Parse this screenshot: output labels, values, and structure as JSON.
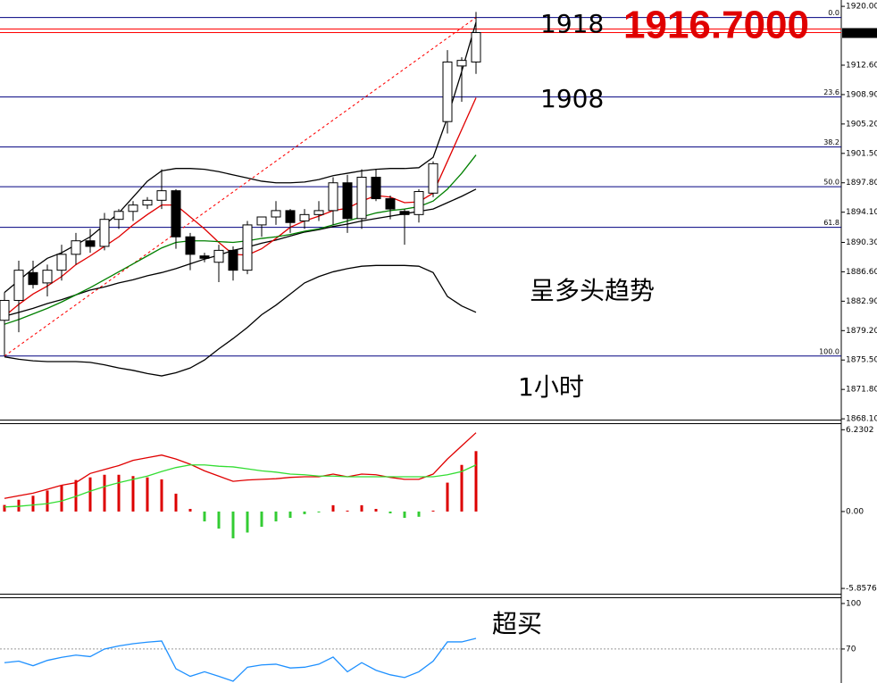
{
  "chart_data": [
    {
      "type": "candlestick",
      "ylim": [
        1868,
        1920.8
      ],
      "yticks": [
        {
          "value": 1920,
          "label": "1920.00"
        },
        {
          "value": 1912.6,
          "label": "1912.60"
        },
        {
          "value": 1908.9,
          "label": "1908.90"
        },
        {
          "value": 1905.2,
          "label": "1905.20"
        },
        {
          "value": 1901.5,
          "label": "1901.50"
        },
        {
          "value": 1897.8,
          "label": "1897.80"
        },
        {
          "value": 1894.1,
          "label": "1894.10"
        },
        {
          "value": 1890.3,
          "label": "1890.30"
        },
        {
          "value": 1886.6,
          "label": "1886.60"
        },
        {
          "value": 1882.9,
          "label": "1882.90"
        },
        {
          "value": 1879.2,
          "label": "1879.20"
        },
        {
          "value": 1875.5,
          "label": "1875.50"
        },
        {
          "value": 1871.8,
          "label": "1871.80"
        },
        {
          "value": 1868.1,
          "label": "1868.10"
        }
      ],
      "current_price": {
        "value": 1916.7,
        "label": "1916.70"
      },
      "current_price_color": "#ff0000",
      "up_color": "#ffffff",
      "down_color": "#000000",
      "open": [
        1880.5,
        1883,
        1886.5,
        1885.2,
        1886.8,
        1888.8,
        1890.5,
        1889.8,
        1893.2,
        1894.2,
        1895,
        1895.6,
        1896.8,
        1891,
        1888.6,
        1887.8,
        1889.3,
        1886.8,
        1892.5,
        1893.5,
        1894.3,
        1893,
        1893.8,
        1894.3,
        1897.8,
        1893.3,
        1898.5,
        1895.8,
        1894.2,
        1893.8,
        1896.5,
        1905.5,
        1912.5,
        1913
      ],
      "high": [
        1884,
        1888,
        1888,
        1887.5,
        1890,
        1891.5,
        1892,
        1894,
        1894.5,
        1895.5,
        1896,
        1899.5,
        1897,
        1891.5,
        1889,
        1890,
        1889.8,
        1893,
        1893.5,
        1895.5,
        1894.5,
        1894.5,
        1895.5,
        1898.5,
        1898.8,
        1899.5,
        1899.5,
        1896.2,
        1894.5,
        1897,
        1900.5,
        1914.5,
        1913.6,
        1919.3
      ],
      "low": [
        1876,
        1879,
        1884.5,
        1883.5,
        1885.5,
        1887.5,
        1889,
        1889.3,
        1892,
        1893,
        1894.5,
        1894.5,
        1889.5,
        1886.8,
        1887.8,
        1885.3,
        1885.5,
        1886.3,
        1891,
        1892.5,
        1891.5,
        1892,
        1893,
        1892.5,
        1891.5,
        1892,
        1895.5,
        1893.2,
        1890,
        1892.8,
        1896,
        1904,
        1908,
        1911.5
      ],
      "close": [
        1883,
        1886.8,
        1885,
        1886.8,
        1888.8,
        1890.5,
        1889.8,
        1893.2,
        1894.2,
        1895,
        1895.6,
        1896.8,
        1891,
        1888.8,
        1888.3,
        1889.3,
        1886.8,
        1892.5,
        1893.5,
        1894.3,
        1892.8,
        1893.8,
        1894.3,
        1897.8,
        1893.3,
        1898.5,
        1895.8,
        1894.5,
        1893.8,
        1896.7,
        1900.2,
        1913,
        1913.2,
        1916.7
      ],
      "series": [
        {
          "color": "#000000",
          "values": [
            1884,
            1885.5,
            1887,
            1888.3,
            1889,
            1890,
            1891,
            1892.5,
            1894,
            1896,
            1898,
            1899.3,
            1899.6,
            1899.6,
            1899.5,
            1899.2,
            1898.8,
            1898.4,
            1898,
            1897.8,
            1897.8,
            1897.9,
            1898.2,
            1898.7,
            1899,
            1899.3,
            1899.5,
            1899.6,
            1899.6,
            1899.7,
            1901,
            1906,
            1911.8,
            1918
          ]
        },
        {
          "color": "#000000",
          "values": [
            1881,
            1881.5,
            1882,
            1882.6,
            1883.1,
            1883.7,
            1884.3,
            1884.7,
            1885.2,
            1885.6,
            1886.1,
            1886.5,
            1887,
            1887.6,
            1888.2,
            1888.7,
            1889.3,
            1889.7,
            1890.2,
            1890.6,
            1891.1,
            1891.6,
            1891.9,
            1892.3,
            1892.6,
            1893,
            1893.3,
            1893.6,
            1893.9,
            1894.2,
            1894.5,
            1895.3,
            1896.1,
            1897
          ]
        },
        {
          "color": "#000000",
          "values": [
            1875.9,
            1875.6,
            1875.4,
            1875.3,
            1875.3,
            1875.3,
            1875.2,
            1874.9,
            1874.5,
            1874.2,
            1873.8,
            1873.5,
            1873.9,
            1874.5,
            1875.5,
            1876.9,
            1878.2,
            1879.6,
            1881.2,
            1882.4,
            1883.8,
            1885.2,
            1886,
            1886.6,
            1887,
            1887.3,
            1887.4,
            1887.4,
            1887.4,
            1887.3,
            1886.5,
            1883.5,
            1882.3,
            1881.5
          ]
        },
        {
          "color": "#e00000",
          "values": [
            1881,
            1882.5,
            1883.8,
            1884.8,
            1886,
            1887.5,
            1888.6,
            1889.8,
            1891,
            1892.5,
            1893.8,
            1895,
            1895,
            1893.5,
            1892,
            1890.3,
            1888.8,
            1888.7,
            1889.5,
            1890.8,
            1892.2,
            1893,
            1893.6,
            1894.3,
            1894.6,
            1895.5,
            1896.2,
            1896,
            1895.3,
            1895.4,
            1896.5,
            1900.5,
            1904.5,
            1908.5
          ]
        },
        {
          "color": "#008000",
          "values": [
            1880,
            1880.6,
            1881.3,
            1882,
            1882.8,
            1883.7,
            1884.6,
            1885.6,
            1886.6,
            1887.6,
            1888.6,
            1889.6,
            1890.3,
            1890.5,
            1890.5,
            1890.4,
            1890.3,
            1890.5,
            1890.8,
            1891,
            1891.3,
            1891.7,
            1892,
            1892.5,
            1893,
            1893.5,
            1894,
            1894.3,
            1894.5,
            1894.8,
            1895.5,
            1897,
            1899,
            1901.3
          ]
        }
      ],
      "fib_color": "#000080",
      "fib_levels": [
        {
          "level": {
            "value": 0,
            "label": "0.0"
          },
          "price": 1918.6
        },
        {
          "level": 23.6,
          "price": 1908.6
        },
        {
          "level": 38.2,
          "price": 1902.3
        },
        {
          "level": {
            "value": 50,
            "label": "50.0"
          },
          "price": 1897.3
        },
        {
          "level": 61.8,
          "price": 1892.2
        },
        {
          "level": {
            "value": 100,
            "label": "100.0"
          },
          "price": 1876
        }
      ],
      "price_label": "1916.7000",
      "annotations": [
        "1918",
        "1908",
        "呈多头趋势",
        "1小时"
      ]
    },
    {
      "type": "macd",
      "ylim": [
        -6.26,
        6.66
      ],
      "yticks": [
        6.2302,
        {
          "value": 0,
          "label": "0.00"
        },
        -5.8576
      ],
      "positive_color": "#dd0000",
      "negative_color": "#33cc33",
      "values": [
        0.5,
        0.9,
        1.2,
        1.6,
        2.0,
        2.4,
        2.6,
        2.8,
        2.8,
        2.7,
        2.6,
        2.45,
        1.36,
        0.2,
        -0.75,
        -1.3,
        -2.04,
        -1.6,
        -1.16,
        -0.75,
        -0.48,
        -0.2,
        -0.07,
        0.48,
        0.07,
        0.48,
        0.2,
        -0.14,
        -0.48,
        -0.4,
        0.07,
        2.2,
        3.55,
        4.6
      ],
      "series": [
        {
          "color": "#e00000",
          "values": [
            1.0,
            1.2,
            1.4,
            1.7,
            2.0,
            2.2,
            2.9,
            3.2,
            3.5,
            3.9,
            4.1,
            4.3,
            4.0,
            3.6,
            3.1,
            2.7,
            2.3,
            2.4,
            2.45,
            2.5,
            2.6,
            2.65,
            2.65,
            2.85,
            2.65,
            2.85,
            2.8,
            2.6,
            2.45,
            2.45,
            2.85,
            4.0,
            5.0,
            6.0
          ]
        },
        {
          "color": "#33dd33",
          "values": [
            0.35,
            0.4,
            0.5,
            0.6,
            0.8,
            1.15,
            1.55,
            1.9,
            2.2,
            2.45,
            2.7,
            3.05,
            3.35,
            3.55,
            3.55,
            3.45,
            3.4,
            3.25,
            3.1,
            3.0,
            2.85,
            2.8,
            2.7,
            2.7,
            2.65,
            2.65,
            2.65,
            2.65,
            2.65,
            2.65,
            2.65,
            2.8,
            3.05,
            3.55
          ]
        }
      ]
    },
    {
      "type": "line",
      "ylim": [
        47.6,
        103.5
      ],
      "yticks": [
        100,
        70
      ],
      "dashed_level": 70,
      "color": "#1e90ff",
      "values": [
        61,
        62,
        59,
        62.5,
        64.5,
        66,
        65,
        70,
        72,
        73.5,
        74.5,
        75.3,
        57,
        52,
        55,
        52,
        48.8,
        58,
        59.5,
        60,
        57.5,
        58,
        60,
        64.7,
        55,
        61,
        56,
        53,
        51.2,
        55,
        62,
        74.7,
        74.7,
        77
      ],
      "annotations": [
        "超买"
      ]
    }
  ]
}
